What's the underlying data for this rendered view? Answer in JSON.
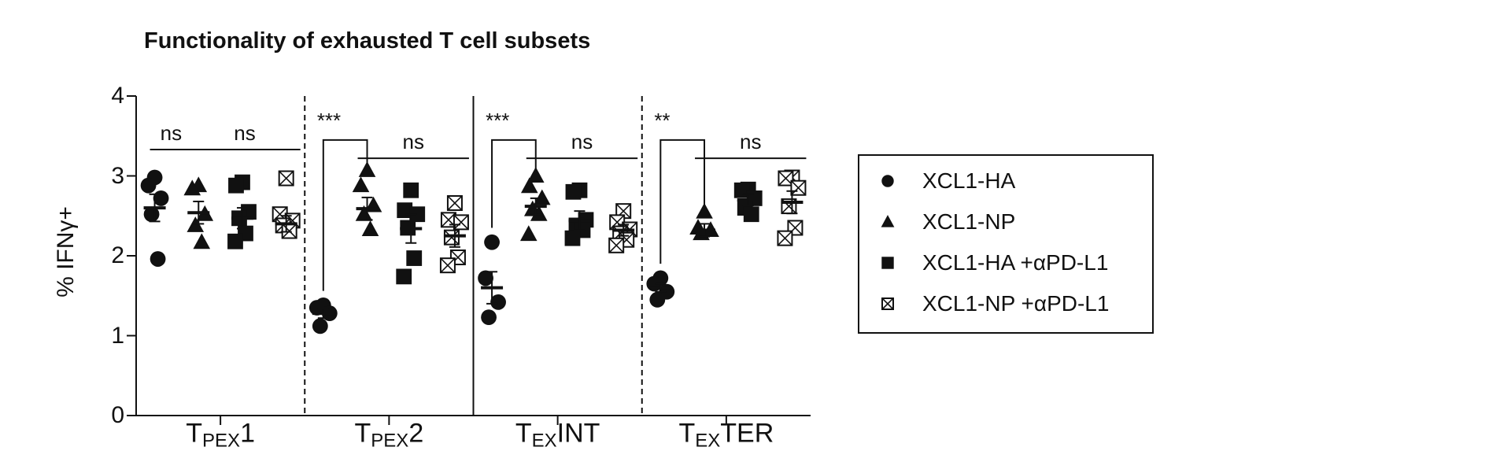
{
  "chart_data": {
    "type": "scatter",
    "title": "Functionality of exhausted T cell subsets",
    "ylabel": "% IFNγ+",
    "ylim": [
      0,
      4
    ],
    "yticks": [
      "0",
      "1",
      "2",
      "3",
      "4"
    ],
    "groups": [
      {
        "label_main": "T",
        "label_sub": "PEX",
        "label_suffix": "1"
      },
      {
        "label_main": "T",
        "label_sub": "PEX",
        "label_suffix": "2"
      },
      {
        "label_main": "T",
        "label_sub": "EX",
        "label_suffix": "INT"
      },
      {
        "label_main": "T",
        "label_sub": "EX",
        "label_suffix": "TER"
      }
    ],
    "series": [
      {
        "name": "XCL1-HA",
        "marker": "circle"
      },
      {
        "name": "XCL1-NP",
        "marker": "triangle"
      },
      {
        "name": "XCL1-HA +αPD-L1",
        "marker": "square"
      },
      {
        "name": "XCL1-NP +αPD-L1",
        "marker": "boxed-x"
      }
    ],
    "points": [
      [
        [
          2.98,
          2.88,
          2.72,
          2.52,
          1.96
        ],
        [
          2.88,
          2.84,
          2.52,
          2.38,
          2.17
        ],
        [
          2.92,
          2.88,
          2.55,
          2.47,
          2.28,
          2.18
        ],
        [
          2.97,
          2.52,
          2.44,
          2.38,
          2.31
        ]
      ],
      [
        [
          1.38,
          1.35,
          1.28,
          1.12
        ],
        [
          3.07,
          2.88,
          2.63,
          2.52,
          2.33
        ],
        [
          2.82,
          2.57,
          2.52,
          2.35,
          1.97,
          1.74
        ],
        [
          2.66,
          2.45,
          2.42,
          2.23,
          1.98,
          1.88
        ]
      ],
      [
        [
          2.17,
          1.72,
          1.42,
          1.23
        ],
        [
          3.0,
          2.87,
          2.72,
          2.58,
          2.52,
          2.27
        ],
        [
          2.82,
          2.8,
          2.45,
          2.38,
          2.32,
          2.22
        ],
        [
          2.56,
          2.42,
          2.33,
          2.28,
          2.2,
          2.13
        ]
      ],
      [
        [
          1.72,
          1.65,
          1.55,
          1.45
        ],
        [
          2.55,
          2.35,
          2.32,
          2.28
        ],
        [
          2.83,
          2.82,
          2.72,
          2.6,
          2.52
        ],
        [
          2.98,
          2.97,
          2.85,
          2.62,
          2.35,
          2.22
        ]
      ]
    ],
    "means": [
      [
        2.6,
        2.54,
        2.47,
        2.4
      ],
      [
        1.28,
        2.59,
        2.34,
        2.25
      ],
      [
        1.6,
        2.62,
        2.44,
        2.32
      ],
      [
        1.6,
        2.32,
        2.7,
        2.67
      ]
    ],
    "sems": [
      [
        0.17,
        0.14,
        0.13,
        0.1
      ],
      [
        0.06,
        0.14,
        0.18,
        0.14
      ],
      [
        0.2,
        0.1,
        0.12,
        0.07
      ],
      [
        0.05,
        0.08,
        0.07,
        0.14
      ]
    ],
    "annotations": [
      {
        "group": 0,
        "from": 0,
        "to": 1,
        "text": "ns",
        "style": "line"
      },
      {
        "group": 0,
        "from": 1,
        "to": 3,
        "text": "ns",
        "style": "line"
      },
      {
        "group": 1,
        "from": 0,
        "to": 1,
        "text": "***",
        "style": "bracket"
      },
      {
        "group": 1,
        "from": 1,
        "to": 3,
        "text": "ns",
        "style": "line"
      },
      {
        "group": 2,
        "from": 0,
        "to": 1,
        "text": "***",
        "style": "bracket"
      },
      {
        "group": 2,
        "from": 1,
        "to": 3,
        "text": "ns",
        "style": "line"
      },
      {
        "group": 3,
        "from": 0,
        "to": 1,
        "text": "**",
        "style": "bracket"
      },
      {
        "group": 3,
        "from": 1,
        "to": 3,
        "text": "ns",
        "style": "line"
      }
    ],
    "separators": [
      "dashed",
      "solid",
      "dashed"
    ],
    "grid": false,
    "legend_position": "right"
  }
}
